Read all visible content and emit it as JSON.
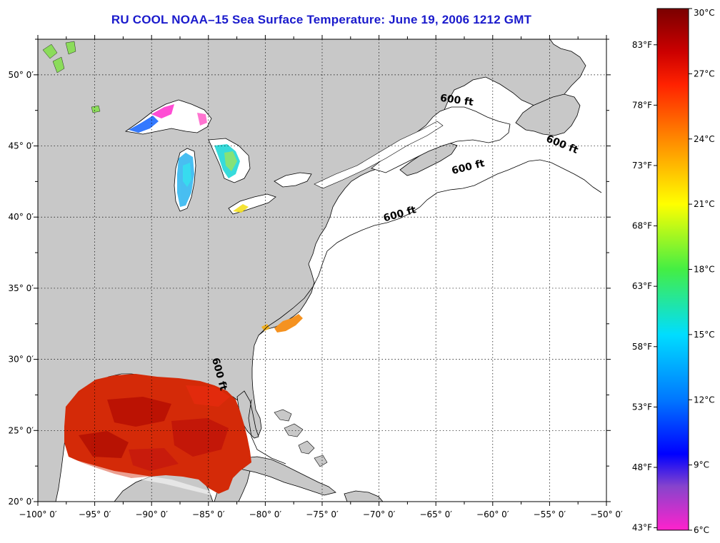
{
  "title": "RU COOL  NOAA–15  Sea Surface Temperature:  June 19, 2006 1212 GMT",
  "map": {
    "lon_range": [
      -100,
      -50
    ],
    "lat_range": [
      20,
      52.5
    ],
    "lon_ticks": [
      {
        "value": -100,
        "label": "−100° 0′"
      },
      {
        "value": -95,
        "label": "−95° 0′"
      },
      {
        "value": -90,
        "label": "−90° 0′"
      },
      {
        "value": -85,
        "label": "−85° 0′"
      },
      {
        "value": -80,
        "label": "−80° 0′"
      },
      {
        "value": -75,
        "label": "−75° 0′"
      },
      {
        "value": -70,
        "label": "−70° 0′"
      },
      {
        "value": -65,
        "label": "−65° 0′"
      },
      {
        "value": -60,
        "label": "−60° 0′"
      },
      {
        "value": -55,
        "label": "−55° 0′"
      },
      {
        "value": -50,
        "label": "−50° 0′"
      }
    ],
    "lat_ticks": [
      {
        "value": 20,
        "label": "20° 0′"
      },
      {
        "value": 25,
        "label": "25° 0′"
      },
      {
        "value": 30,
        "label": "30° 0′"
      },
      {
        "value": 35,
        "label": "35° 0′"
      },
      {
        "value": 40,
        "label": "40° 0′"
      },
      {
        "value": 45,
        "label": "45° 0′"
      },
      {
        "value": 50,
        "label": "50° 0′"
      }
    ],
    "isobath_labels": [
      {
        "text": "600 ft",
        "lon": -63.2,
        "lat": 48.0,
        "angle": 8
      },
      {
        "text": "600 ft",
        "lon": -54.0,
        "lat": 44.9,
        "angle": 22
      },
      {
        "text": "600 ft",
        "lon": -62.1,
        "lat": 43.3,
        "angle": -14
      },
      {
        "text": "600 ft",
        "lon": -68.1,
        "lat": 40.0,
        "angle": -16
      },
      {
        "text": "600 ft",
        "lon": -84.3,
        "lat": 28.9,
        "angle": 75
      }
    ],
    "colors": {
      "land": "#c8c8c8",
      "ocean": "#ffffff",
      "grid": "#000000",
      "title": "#1a1acc",
      "gulf_sst": "#d42a08"
    }
  },
  "colorbar": {
    "range_c": [
      6,
      30
    ],
    "celsius_labels": [
      {
        "value": 30,
        "label": "30°C"
      },
      {
        "value": 27,
        "label": "27°C"
      },
      {
        "value": 24,
        "label": "24°C"
      },
      {
        "value": 21,
        "label": "21°C"
      },
      {
        "value": 18,
        "label": "18°C"
      },
      {
        "value": 15,
        "label": "15°C"
      },
      {
        "value": 12,
        "label": "12°C"
      },
      {
        "value": 9,
        "label": "9°C"
      },
      {
        "value": 6,
        "label": "6°C"
      }
    ],
    "fahrenheit_labels": [
      {
        "value": 83,
        "label": "83°F"
      },
      {
        "value": 78,
        "label": "78°F"
      },
      {
        "value": 73,
        "label": "73°F"
      },
      {
        "value": 68,
        "label": "68°F"
      },
      {
        "value": 63,
        "label": "63°F"
      },
      {
        "value": 58,
        "label": "58°F"
      },
      {
        "value": 53,
        "label": "53°F"
      },
      {
        "value": 48,
        "label": "48°F"
      },
      {
        "value": 43,
        "label": "43°F"
      }
    ],
    "stops": [
      {
        "c": 30,
        "color": "#7a0000"
      },
      {
        "c": 28,
        "color": "#cc0000"
      },
      {
        "c": 26.5,
        "color": "#ff2200"
      },
      {
        "c": 24,
        "color": "#ff8800"
      },
      {
        "c": 21,
        "color": "#ffff00"
      },
      {
        "c": 18,
        "color": "#44ee44"
      },
      {
        "c": 15,
        "color": "#00ddff"
      },
      {
        "c": 12,
        "color": "#0077ff"
      },
      {
        "c": 9.5,
        "color": "#0000ff"
      },
      {
        "c": 8,
        "color": "#8844cc"
      },
      {
        "c": 6,
        "color": "#ff22cc"
      }
    ]
  }
}
